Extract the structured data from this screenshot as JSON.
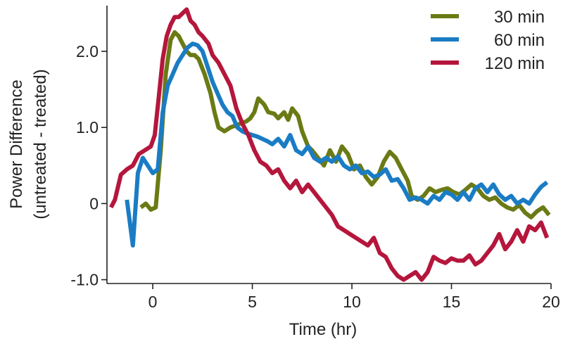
{
  "chart_data": {
    "type": "line",
    "title": "",
    "xlabel": "Time (hr)",
    "ylabel_lines": [
      "Power Difference",
      "(untreated - treated)"
    ],
    "xlim": [
      -2.3,
      20
    ],
    "ylim": [
      -1.05,
      2.6
    ],
    "x_ticks": [
      0,
      5,
      10,
      15,
      20
    ],
    "x_tick_labels": [
      "0",
      "5",
      "10",
      "15",
      "20"
    ],
    "y_ticks": [
      2.0,
      1.0,
      0,
      -1.0
    ],
    "y_tick_labels": [
      "2.0",
      "1.0",
      "0",
      "-1.0"
    ],
    "grid": false,
    "legend_position": "top-right",
    "series": [
      {
        "name": "30 min",
        "color": "#6b7a14",
        "x": [
          -0.6,
          -0.35,
          -0.1,
          0.15,
          0.4,
          0.65,
          0.9,
          1.1,
          1.3,
          1.5,
          1.7,
          1.9,
          2.1,
          2.3,
          2.6,
          2.9,
          3.1,
          3.3,
          3.6,
          3.9,
          4.1,
          4.4,
          4.7,
          4.9,
          5.1,
          5.3,
          5.6,
          5.8,
          6.1,
          6.3,
          6.6,
          6.8,
          7.0,
          7.3,
          7.5,
          7.8,
          8.0,
          8.3,
          8.6,
          8.9,
          9.2,
          9.5,
          9.8,
          10.1,
          10.4,
          10.7,
          11.0,
          11.3,
          11.6,
          11.9,
          12.2,
          12.5,
          12.8,
          13.0,
          13.3,
          13.6,
          13.9,
          14.2,
          14.5,
          14.8,
          15.1,
          15.4,
          15.7,
          16.0,
          16.3,
          16.6,
          16.9,
          17.2,
          17.5,
          17.8,
          18.1,
          18.4,
          18.7,
          19.0,
          19.3,
          19.6,
          19.9
        ],
        "y": [
          -0.05,
          0.0,
          -0.08,
          -0.05,
          0.7,
          1.7,
          2.15,
          2.25,
          2.2,
          2.1,
          2.0,
          1.95,
          1.95,
          1.9,
          1.7,
          1.45,
          1.2,
          1.0,
          0.95,
          1.0,
          1.02,
          1.05,
          1.08,
          1.12,
          1.2,
          1.38,
          1.3,
          1.2,
          1.18,
          1.12,
          1.2,
          1.1,
          1.25,
          1.15,
          0.95,
          0.75,
          0.7,
          0.6,
          0.5,
          0.7,
          0.55,
          0.75,
          0.65,
          0.45,
          0.5,
          0.35,
          0.25,
          0.35,
          0.55,
          0.68,
          0.6,
          0.45,
          0.3,
          0.1,
          0.05,
          0.1,
          0.2,
          0.15,
          0.18,
          0.2,
          0.15,
          0.12,
          0.18,
          0.25,
          0.2,
          0.1,
          0.05,
          0.08,
          0.0,
          -0.05,
          -0.08,
          -0.02,
          -0.12,
          -0.18,
          -0.1,
          -0.05,
          -0.15
        ]
      },
      {
        "name": "60 min",
        "color": "#1a7cc4",
        "x": [
          -1.3,
          -1.0,
          -0.75,
          -0.5,
          -0.25,
          0.0,
          0.25,
          0.5,
          0.75,
          1.0,
          1.25,
          1.5,
          1.75,
          2.0,
          2.25,
          2.5,
          2.75,
          3.0,
          3.25,
          3.5,
          3.75,
          4.0,
          4.25,
          4.5,
          4.75,
          5.0,
          5.25,
          5.5,
          5.75,
          6.0,
          6.3,
          6.6,
          6.9,
          7.2,
          7.5,
          7.8,
          8.1,
          8.4,
          8.7,
          9.0,
          9.3,
          9.6,
          9.9,
          10.2,
          10.5,
          10.8,
          11.1,
          11.4,
          11.7,
          12.0,
          12.3,
          12.6,
          12.9,
          13.2,
          13.5,
          13.8,
          14.1,
          14.4,
          14.7,
          15.0,
          15.3,
          15.6,
          15.9,
          16.2,
          16.5,
          16.8,
          17.1,
          17.4,
          17.7,
          18.0,
          18.3,
          18.6,
          18.9,
          19.2,
          19.5,
          19.8
        ],
        "y": [
          0.05,
          -0.55,
          0.4,
          0.6,
          0.5,
          0.4,
          0.45,
          1.2,
          1.55,
          1.7,
          1.85,
          1.95,
          2.05,
          2.1,
          2.08,
          2.0,
          1.8,
          1.6,
          1.45,
          1.3,
          1.2,
          1.15,
          1.0,
          0.95,
          0.92,
          0.9,
          0.88,
          0.85,
          0.82,
          0.78,
          0.85,
          0.75,
          0.9,
          0.7,
          0.65,
          0.75,
          0.6,
          0.55,
          0.6,
          0.55,
          0.62,
          0.5,
          0.45,
          0.5,
          0.4,
          0.42,
          0.35,
          0.38,
          0.45,
          0.3,
          0.32,
          0.2,
          0.05,
          0.08,
          0.05,
          0.0,
          0.1,
          0.05,
          0.15,
          0.12,
          0.05,
          0.15,
          0.05,
          0.2,
          0.25,
          0.15,
          0.25,
          0.12,
          0.05,
          0.1,
          0.0,
          0.05,
          0.0,
          0.12,
          0.22,
          0.28
        ]
      },
      {
        "name": "120 min",
        "color": "#b5163c",
        "x": [
          -2.1,
          -1.9,
          -1.6,
          -1.3,
          -1.0,
          -0.7,
          -0.4,
          -0.1,
          0.1,
          0.3,
          0.5,
          0.7,
          0.9,
          1.1,
          1.3,
          1.5,
          1.7,
          1.9,
          2.1,
          2.3,
          2.5,
          2.8,
          3.0,
          3.3,
          3.6,
          3.9,
          4.2,
          4.5,
          4.8,
          5.1,
          5.4,
          5.7,
          6.0,
          6.3,
          6.6,
          6.9,
          7.2,
          7.5,
          7.8,
          8.1,
          8.4,
          8.7,
          9.0,
          9.3,
          9.6,
          9.9,
          10.2,
          10.5,
          10.8,
          11.1,
          11.4,
          11.7,
          12.0,
          12.3,
          12.6,
          12.9,
          13.2,
          13.5,
          13.8,
          14.1,
          14.4,
          14.7,
          15.0,
          15.3,
          15.6,
          15.9,
          16.2,
          16.5,
          16.8,
          17.1,
          17.4,
          17.7,
          18.0,
          18.3,
          18.6,
          18.9,
          19.2,
          19.5,
          19.8
        ],
        "y": [
          -0.05,
          0.05,
          0.38,
          0.45,
          0.5,
          0.65,
          0.7,
          0.75,
          0.9,
          1.4,
          1.9,
          2.2,
          2.35,
          2.45,
          2.45,
          2.5,
          2.55,
          2.4,
          2.35,
          2.25,
          2.2,
          2.1,
          1.95,
          1.85,
          1.7,
          1.55,
          1.25,
          1.05,
          0.9,
          0.7,
          0.55,
          0.5,
          0.4,
          0.45,
          0.3,
          0.2,
          0.3,
          0.15,
          0.25,
          0.15,
          0.05,
          -0.05,
          -0.15,
          -0.3,
          -0.35,
          -0.4,
          -0.45,
          -0.5,
          -0.55,
          -0.45,
          -0.65,
          -0.7,
          -0.85,
          -0.95,
          -1.0,
          -0.95,
          -0.9,
          -1.0,
          -0.9,
          -0.7,
          -0.75,
          -0.78,
          -0.72,
          -0.75,
          -0.75,
          -0.68,
          -0.8,
          -0.75,
          -0.65,
          -0.55,
          -0.4,
          -0.6,
          -0.5,
          -0.35,
          -0.5,
          -0.3,
          -0.35,
          -0.25,
          -0.45
        ]
      }
    ]
  }
}
